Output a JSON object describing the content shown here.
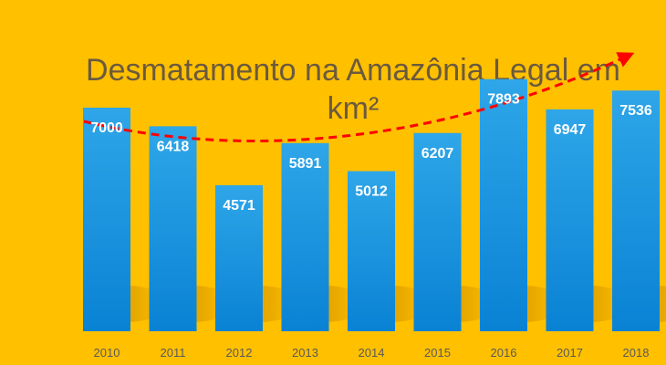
{
  "chart_data": {
    "type": "bar",
    "title_line1": "Desmatamento na Amazônia Legal em",
    "title_line2": "km²",
    "title": "Desmatamento na Amazônia Legal em km²",
    "xlabel": "",
    "ylabel": "",
    "categories": [
      "2010",
      "2011",
      "2012",
      "2013",
      "2014",
      "2015",
      "2016",
      "2017",
      "2018"
    ],
    "values": [
      7000,
      6418,
      4571,
      5891,
      5012,
      6207,
      7893,
      6947,
      7536
    ],
    "ylim": [
      0,
      8800
    ],
    "grid": false,
    "legend": "none",
    "trendline": {
      "style": "dashed",
      "arrow": "end",
      "color": "#FF0000"
    },
    "colors": {
      "background": "#FFC000",
      "bar_top": "#2EA6E8",
      "bar_bottom": "#0A82D4",
      "bar_label": "#FFFFFF",
      "tick_label": "#595959",
      "title": "#6B5A3E",
      "trend": "#FF0000"
    }
  }
}
